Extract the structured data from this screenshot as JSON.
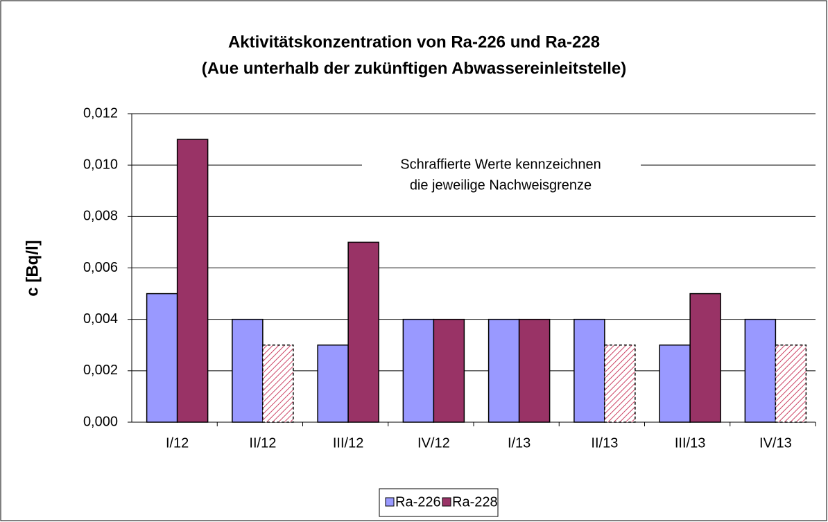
{
  "chart_data": {
    "type": "bar",
    "title": [
      "Aktivitätskonzentration von Ra-226 und Ra-228",
      "(Aue unterhalb der zukünftigen Abwassereinleitstelle)"
    ],
    "y_label": "c [Bq/l]",
    "annotation": [
      "Schraffierte Werte kennzeichnen",
      "die jeweilige Nachweisgrenze"
    ],
    "categories": [
      "I/12",
      "II/12",
      "III/12",
      "IV/12",
      "I/13",
      "II/13",
      "III/13",
      "IV/13"
    ],
    "series": [
      {
        "name": "Ra-226",
        "color": "#9999ff",
        "values": [
          0.005,
          0.004,
          0.003,
          0.004,
          0.004,
          0.004,
          0.003,
          0.004
        ],
        "hatched": [
          false,
          false,
          false,
          false,
          false,
          false,
          false,
          false
        ]
      },
      {
        "name": "Ra-228",
        "color": "#993366",
        "values": [
          0.011,
          0.003,
          0.007,
          0.004,
          0.004,
          0.003,
          0.005,
          0.003
        ],
        "hatched": [
          false,
          true,
          false,
          false,
          false,
          true,
          false,
          true
        ]
      }
    ],
    "ylim": [
      0,
      0.012
    ],
    "yticks": [
      {
        "value": 0,
        "label": "0,000"
      },
      {
        "value": 0.002,
        "label": "0,002"
      },
      {
        "value": 0.004,
        "label": "0,004"
      },
      {
        "value": 0.006,
        "label": "0,006"
      },
      {
        "value": 0.008,
        "label": "0,008"
      },
      {
        "value": 0.01,
        "label": "0,010"
      },
      {
        "value": 0.012,
        "label": "0,012"
      }
    ],
    "grid": true,
    "legend": "bottom"
  }
}
